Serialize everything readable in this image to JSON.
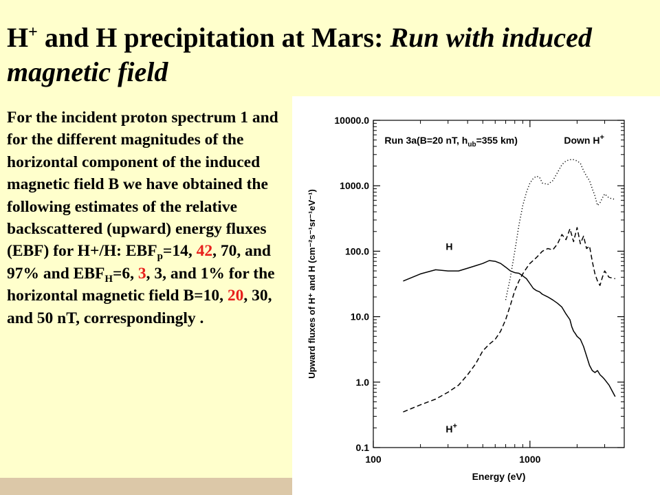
{
  "slide": {
    "title_part1": "H",
    "title_sup": "+",
    "title_part2": " and H precipitation at Mars: ",
    "title_italic": "Run with induced magnetic field",
    "body": {
      "t1": " For the incident proton spectrum 1 and for the different magnitudes of the horizontal component of the induced magnetic field B we have obtained the following estimates of the relative backscattered (upward) energy fluxes (EBF) for H+/H: EBF",
      "sub_p": "p",
      "t2": "=14, ",
      "r1": "42",
      "t3": ", 70, and 97% and EBF",
      "sub_h": "H",
      "t4": "=6, ",
      "r2": "3",
      "t5": ", 3, and 1% for the horizontal magnetic field B=10, ",
      "r3": "20",
      "t6": ", 30, and 50 nT, correspondingly ."
    },
    "colors": {
      "background": "#ffffcc",
      "highlight": "#e8201c",
      "bottom_strip": "#dcc8a8"
    }
  },
  "chart_data": {
    "type": "line",
    "xscale": "log",
    "yscale": "log",
    "xlim": [
      100,
      4000
    ],
    "ylim": [
      0.1,
      10000
    ],
    "xlabel": "Energy (eV)",
    "ylabel": "Upward fluxes of H⁺ and H (cm⁻²s⁻¹sr⁻¹eV⁻¹)",
    "xticks": [
      {
        "value": 100,
        "label": "100"
      },
      {
        "value": 1000,
        "label": "1000"
      }
    ],
    "yticks": [
      {
        "value": 0.1,
        "label": "0.1"
      },
      {
        "value": 1,
        "label": "1.0"
      },
      {
        "value": 10,
        "label": "10.0"
      },
      {
        "value": 100,
        "label": "100.0"
      },
      {
        "value": 1000,
        "label": "1000.0"
      },
      {
        "value": 10000,
        "label": "10000.0"
      }
    ],
    "annotations": [
      {
        "text": "Run 3a(B=20 nT, h",
        "sub": "ub",
        "rest": "=355 km)",
        "x": 118,
        "y": 4400
      },
      {
        "text": "Down H",
        "sup": "+",
        "x": 1650,
        "y": 4400
      },
      {
        "text": "H",
        "x": 290,
        "y": 105
      },
      {
        "text": "H",
        "sup": "+",
        "x": 290,
        "y": 0.17
      }
    ],
    "series": [
      {
        "style": "solid",
        "points": [
          [
            155,
            35
          ],
          [
            200,
            45
          ],
          [
            250,
            52
          ],
          [
            300,
            50
          ],
          [
            350,
            50
          ],
          [
            400,
            55
          ],
          [
            450,
            60
          ],
          [
            500,
            65
          ],
          [
            550,
            72
          ],
          [
            600,
            70
          ],
          [
            650,
            65
          ],
          [
            700,
            57
          ],
          [
            750,
            50
          ],
          [
            800,
            47
          ],
          [
            850,
            46
          ],
          [
            900,
            42
          ],
          [
            950,
            38
          ],
          [
            1000,
            32
          ],
          [
            1050,
            27
          ],
          [
            1100,
            25
          ],
          [
            1150,
            24
          ],
          [
            1200,
            22
          ],
          [
            1300,
            20
          ],
          [
            1400,
            18
          ],
          [
            1500,
            16
          ],
          [
            1600,
            14
          ],
          [
            1700,
            11
          ],
          [
            1800,
            9
          ],
          [
            1850,
            7
          ],
          [
            1900,
            6
          ],
          [
            1950,
            5.5
          ],
          [
            2000,
            5
          ],
          [
            2100,
            4.5
          ],
          [
            2200,
            3.5
          ],
          [
            2300,
            2.5
          ],
          [
            2400,
            1.8
          ],
          [
            2500,
            1.5
          ],
          [
            2600,
            1.4
          ],
          [
            2700,
            1.5
          ],
          [
            2800,
            1.3
          ],
          [
            2900,
            1.2
          ],
          [
            3000,
            1.1
          ],
          [
            3200,
            0.9
          ],
          [
            3500,
            0.6
          ]
        ]
      },
      {
        "style": "dashed",
        "points": [
          [
            155,
            0.35
          ],
          [
            200,
            0.45
          ],
          [
            250,
            0.55
          ],
          [
            300,
            0.7
          ],
          [
            350,
            0.9
          ],
          [
            400,
            1.3
          ],
          [
            450,
            1.9
          ],
          [
            500,
            3
          ],
          [
            550,
            3.8
          ],
          [
            600,
            4.5
          ],
          [
            650,
            6
          ],
          [
            700,
            9
          ],
          [
            750,
            15
          ],
          [
            800,
            25
          ],
          [
            850,
            35
          ],
          [
            900,
            45
          ],
          [
            950,
            55
          ],
          [
            1000,
            65
          ],
          [
            1100,
            80
          ],
          [
            1200,
            100
          ],
          [
            1300,
            110
          ],
          [
            1400,
            105
          ],
          [
            1500,
            130
          ],
          [
            1600,
            180
          ],
          [
            1700,
            150
          ],
          [
            1800,
            220
          ],
          [
            1900,
            140
          ],
          [
            2000,
            230
          ],
          [
            2100,
            130
          ],
          [
            2200,
            170
          ],
          [
            2300,
            110
          ],
          [
            2400,
            120
          ],
          [
            2500,
            70
          ],
          [
            2600,
            45
          ],
          [
            2700,
            35
          ],
          [
            2800,
            30
          ],
          [
            2900,
            40
          ],
          [
            3000,
            50
          ],
          [
            3200,
            40
          ],
          [
            3500,
            38
          ]
        ]
      },
      {
        "style": "dotted",
        "points": [
          [
            700,
            18
          ],
          [
            750,
            40
          ],
          [
            800,
            100
          ],
          [
            850,
            250
          ],
          [
            900,
            500
          ],
          [
            950,
            800
          ],
          [
            1000,
            1100
          ],
          [
            1050,
            1300
          ],
          [
            1100,
            1400
          ],
          [
            1150,
            1350
          ],
          [
            1200,
            1100
          ],
          [
            1300,
            1050
          ],
          [
            1400,
            1200
          ],
          [
            1500,
            1600
          ],
          [
            1600,
            2100
          ],
          [
            1700,
            2400
          ],
          [
            1800,
            2500
          ],
          [
            1900,
            2500
          ],
          [
            2000,
            2400
          ],
          [
            2100,
            2200
          ],
          [
            2200,
            1700
          ],
          [
            2300,
            1400
          ],
          [
            2400,
            1200
          ],
          [
            2500,
            900
          ],
          [
            2600,
            700
          ],
          [
            2700,
            500
          ],
          [
            2800,
            550
          ],
          [
            2900,
            650
          ],
          [
            3000,
            750
          ],
          [
            3200,
            650
          ],
          [
            3500,
            620
          ]
        ]
      }
    ]
  }
}
